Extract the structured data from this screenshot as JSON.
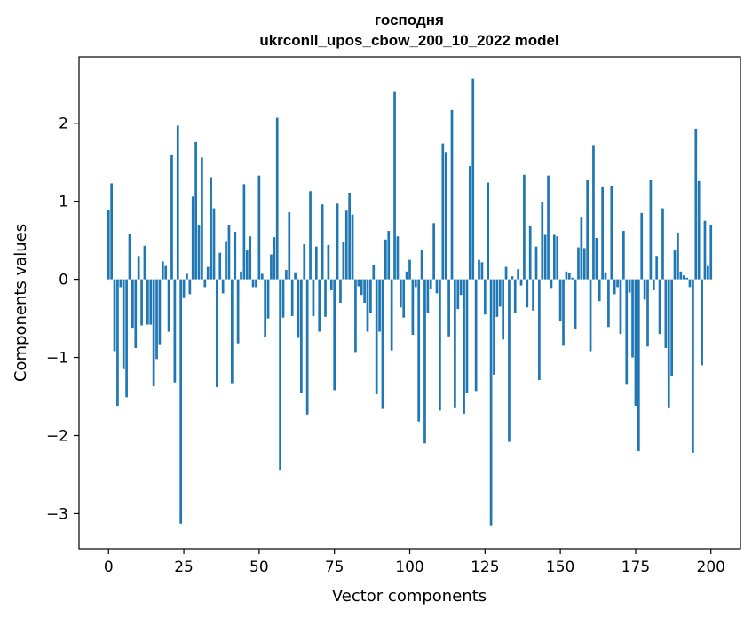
{
  "chart_data": {
    "type": "bar",
    "title": "господня",
    "subtitle": "ukrconll_upos_cbow_200_10_2022 model",
    "xlabel": "Vector components",
    "ylabel": "Components values",
    "xlim": [
      -9.8,
      209.8
    ],
    "ylim": [
      -3.45,
      2.85
    ],
    "xticks": [
      0,
      25,
      50,
      75,
      100,
      125,
      150,
      175,
      200
    ],
    "xtick_labels": [
      "0",
      "25",
      "50",
      "75",
      "100",
      "125",
      "150",
      "175",
      "200"
    ],
    "yticks": [
      -3,
      -2,
      -1,
      0,
      1,
      2
    ],
    "ytick_labels": [
      "−3",
      "−2",
      "−1",
      "0",
      "1",
      "2"
    ],
    "grid": false,
    "bar_color": "#1f77b4",
    "values": [
      0.89,
      1.23,
      -0.92,
      -1.62,
      -0.1,
      -1.15,
      -1.51,
      0.58,
      -0.62,
      -0.88,
      0.3,
      -0.59,
      0.43,
      -0.58,
      -0.58,
      -1.37,
      -1.02,
      -0.83,
      0.23,
      0.17,
      -0.67,
      1.6,
      -1.32,
      1.97,
      -3.13,
      -0.24,
      0.07,
      -0.19,
      1.06,
      1.76,
      0.7,
      1.56,
      -0.1,
      0.16,
      1.31,
      0.91,
      -1.38,
      0.34,
      -0.18,
      0.49,
      0.7,
      -1.33,
      0.61,
      -0.82,
      0.1,
      1.22,
      0.37,
      0.55,
      -0.1,
      -0.1,
      1.33,
      0.07,
      -0.74,
      -0.5,
      0.32,
      0.54,
      2.07,
      -2.44,
      -0.49,
      0.12,
      0.86,
      -0.47,
      0.09,
      -0.75,
      -1.46,
      0.45,
      -1.73,
      1.13,
      -0.47,
      0.42,
      -0.67,
      0.96,
      -0.48,
      0.44,
      -0.14,
      -1.42,
      0.97,
      -0.3,
      0.48,
      0.88,
      1.11,
      0.83,
      -0.93,
      -0.09,
      -0.2,
      -0.3,
      -0.67,
      -0.43,
      0.18,
      -1.47,
      -0.67,
      -1.66,
      0.51,
      0.62,
      -0.91,
      2.4,
      0.55,
      -0.36,
      -0.49,
      0.1,
      0.25,
      -0.71,
      -0.1,
      -1.82,
      0.37,
      -2.1,
      -0.43,
      -0.12,
      0.72,
      -0.18,
      -1.68,
      1.74,
      1.63,
      -0.73,
      2.17,
      -1.64,
      -0.38,
      -0.2,
      -1.72,
      -1.46,
      1.45,
      2.57,
      -1.43,
      0.25,
      0.22,
      -0.45,
      1.24,
      -3.15,
      -1.22,
      -0.48,
      -0.35,
      -0.77,
      0.16,
      -2.08,
      0.04,
      -0.43,
      0.13,
      -0.08,
      1.34,
      -0.36,
      0.68,
      -0.4,
      0.42,
      -1.29,
      0.99,
      0.57,
      1.33,
      -0.11,
      0.57,
      0.55,
      -0.54,
      -0.85,
      0.1,
      0.08,
      0.02,
      -0.64,
      0.41,
      0.8,
      0.4,
      1.27,
      -0.92,
      1.72,
      0.53,
      -0.28,
      1.18,
      0.09,
      -0.61,
      1.19,
      -0.19,
      -0.1,
      -0.7,
      0.62,
      -1.35,
      -0.17,
      -1.0,
      -1.62,
      -2.2,
      0.85,
      -0.26,
      -0.86,
      1.27,
      -0.14,
      0.3,
      -0.7,
      0.91,
      -0.88,
      -1.64,
      -1.24,
      0.37,
      0.6,
      0.1,
      0.05,
      0.02,
      -0.1,
      -2.22,
      1.93,
      1.26,
      -1.1,
      0.75,
      0.17,
      0.7
    ]
  }
}
